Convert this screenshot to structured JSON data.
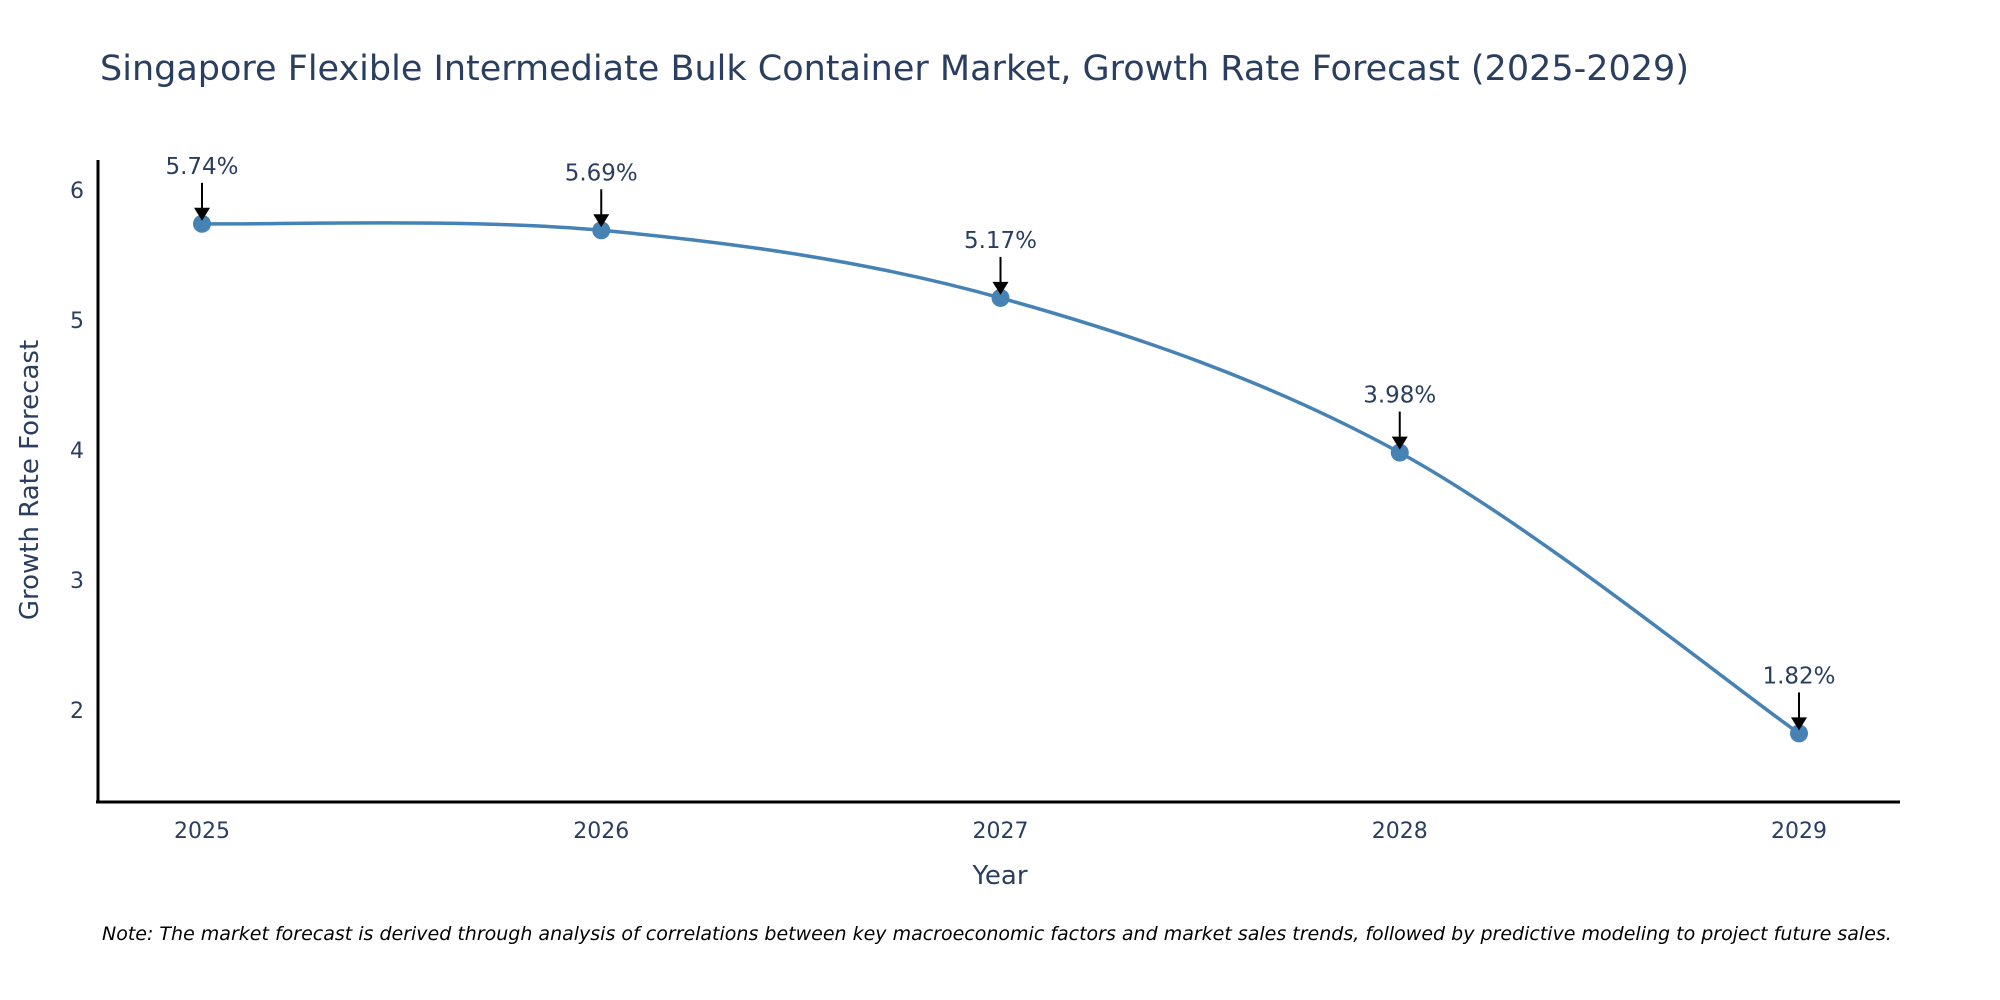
{
  "chart_data": {
    "type": "line",
    "title": "Singapore Flexible Intermediate Bulk Container Market, Growth Rate Forecast (2025-2029)",
    "xlabel": "Year",
    "ylabel": "Growth Rate Forecast",
    "categories": [
      "2025",
      "2026",
      "2027",
      "2028",
      "2029"
    ],
    "series": [
      {
        "name": "Growth Rate Forecast",
        "values": [
          5.74,
          5.69,
          5.17,
          3.98,
          1.82
        ],
        "color": "#4682b4"
      }
    ],
    "annotations": [
      "5.74%",
      "5.69%",
      "5.17%",
      "3.98%",
      "1.82%"
    ],
    "yticks": [
      "2",
      "3",
      "4",
      "5",
      "6"
    ],
    "ytick_values": [
      2,
      3,
      4,
      5,
      6
    ],
    "ylim": [
      1.3,
      6.22
    ],
    "grid": false,
    "legend": "none",
    "line_shape": "spline",
    "note": "Note: The market forecast is derived through analysis of correlations between key macroeconomic factors and market sales trends, followed by predictive modeling to project future sales."
  }
}
